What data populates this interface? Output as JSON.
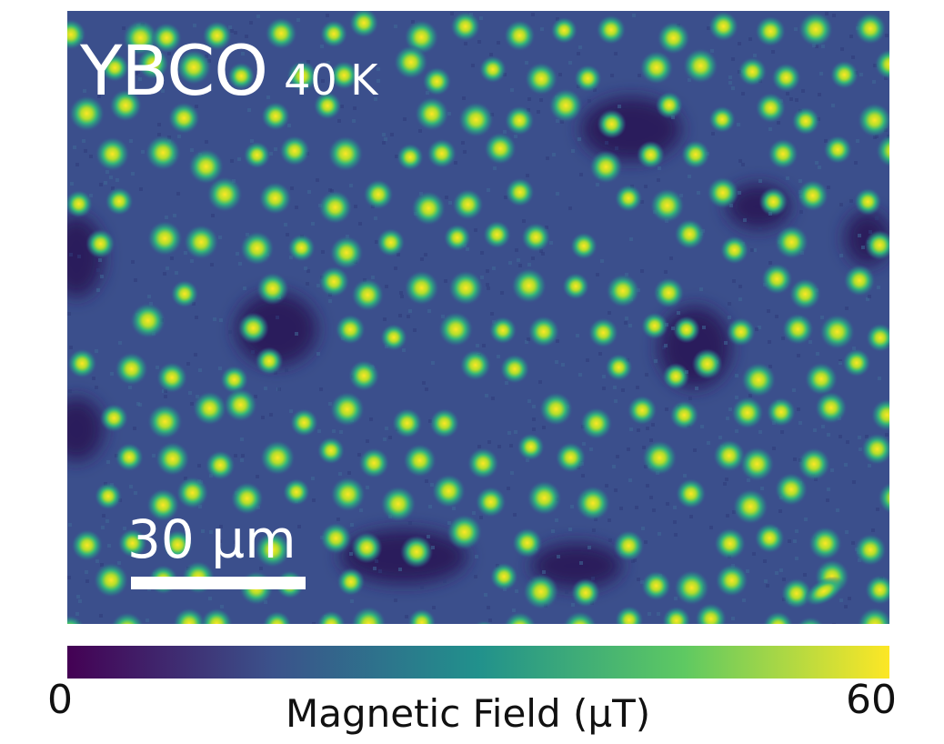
{
  "image": {
    "material": "YBCO",
    "temperature": "40 K",
    "scale_bar_label": "30 µm"
  },
  "colorbar": {
    "min_label": "0",
    "max_label": "60",
    "title": "Magnetic Field (µT)",
    "colormap": [
      "#440154",
      "#3b528b",
      "#21918c",
      "#5ec962",
      "#fde725"
    ]
  },
  "colors": {
    "background": "#3b4f8c",
    "low_field": "#2a1b5c",
    "vortex_core": "#fde725"
  }
}
